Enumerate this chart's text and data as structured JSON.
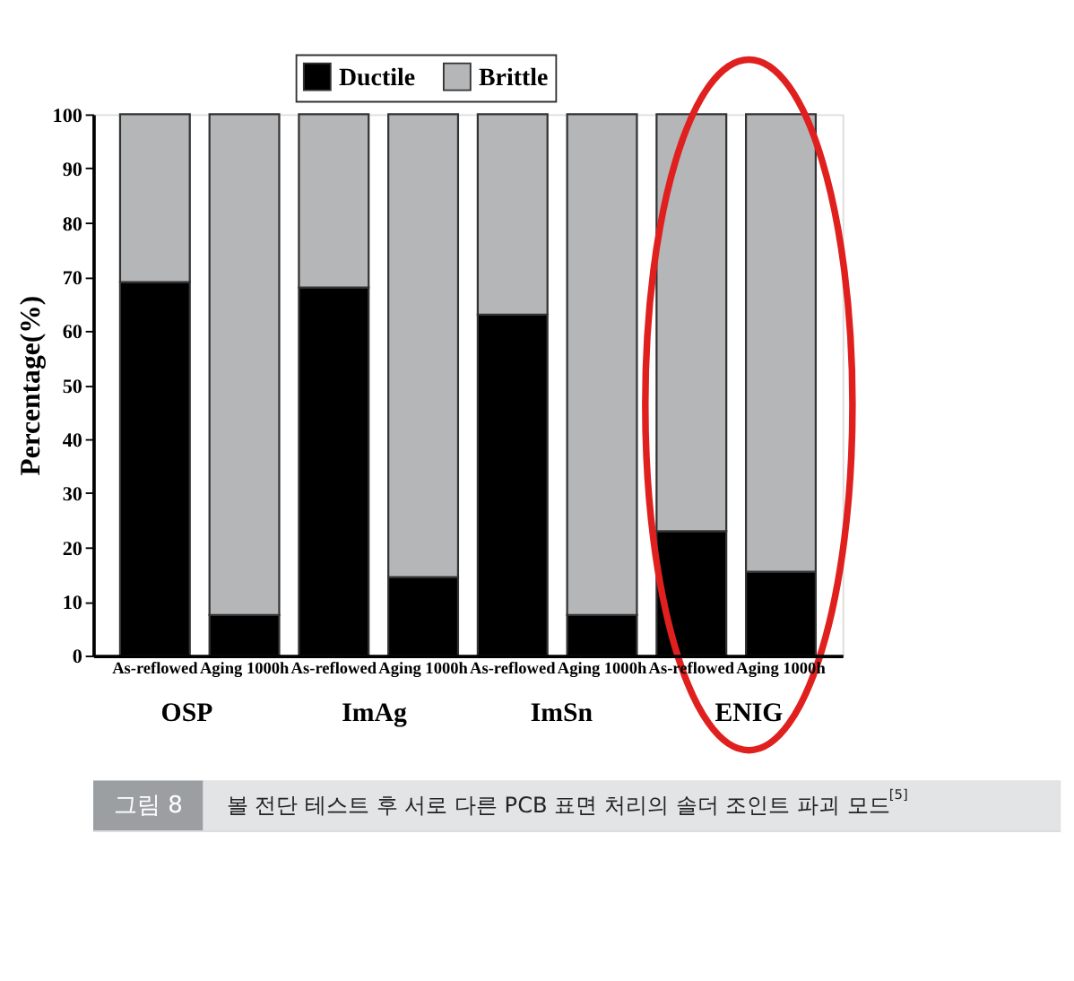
{
  "chart_data": {
    "type": "bar",
    "stacked": true,
    "ylabel": "Percentage(%)",
    "categories": [
      "As-reflowed",
      "Aging 1000h",
      "As-reflowed",
      "Aging 1000h",
      "As-reflowed",
      "Aging 1000h",
      "As-reflowed",
      "Aging 1000h"
    ],
    "series": [
      {
        "name": "Ductile",
        "color": "#000000",
        "values": [
          69,
          7.5,
          68,
          14.5,
          63,
          7.5,
          23,
          15.5
        ]
      },
      {
        "name": "Brittle",
        "color": "#b4b6b8",
        "values": [
          31,
          92.5,
          32,
          85.5,
          37,
          92.5,
          77,
          84.5
        ]
      }
    ],
    "ylim": [
      0,
      100
    ],
    "yticks": [
      0,
      10,
      20,
      30,
      40,
      50,
      60,
      70,
      80,
      90,
      100
    ],
    "grid": false,
    "legend": "top",
    "annotations": [
      "OSP",
      "ImAg",
      "ImSn",
      "ENIG",
      "그림 8",
      "볼 전단 테스트 후 서로 다른 PCB 표면 처리의 솔더 조인트 파괴 모드$^{[5]}$"
    ]
  }
}
